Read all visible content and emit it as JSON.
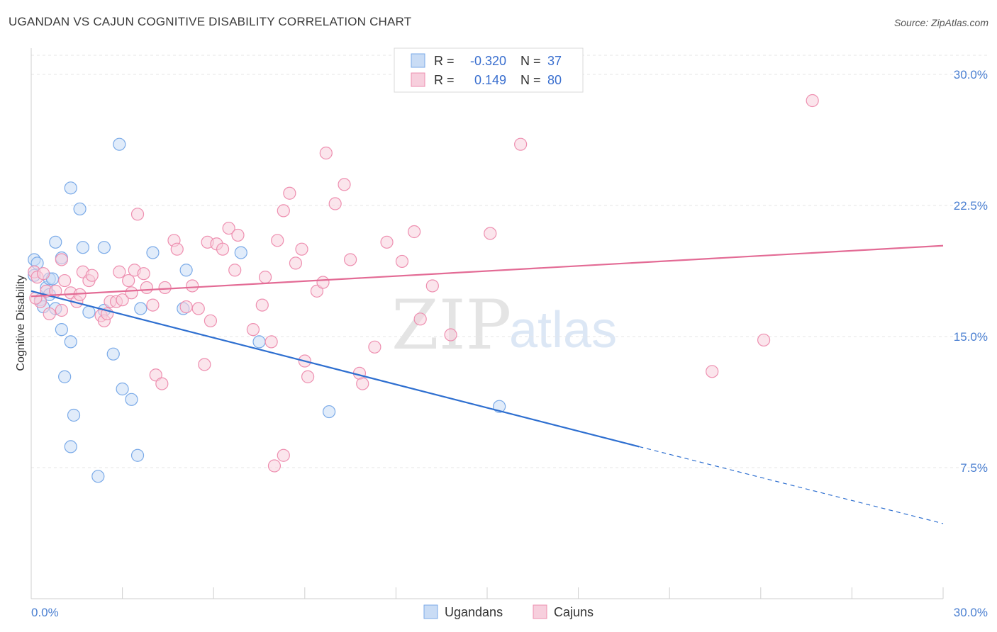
{
  "header": {
    "title": "UGANDAN VS CAJUN COGNITIVE DISABILITY CORRELATION CHART",
    "source": "Source: ZipAtlas.com"
  },
  "watermark": {
    "zip": "ZIP",
    "atlas": "atlas"
  },
  "legend": {
    "rows": [
      {
        "r_label": "R =",
        "r_value": "-0.320",
        "n_label": "N =",
        "n_value": "37"
      },
      {
        "r_label": "R =",
        "r_value": "0.149",
        "n_label": "N =",
        "n_value": "80"
      }
    ]
  },
  "chart_data": {
    "type": "scatter",
    "title": "UGANDAN VS CAJUN COGNITIVE DISABILITY CORRELATION CHART",
    "xlabel": "",
    "ylabel": "Cognitive Disability",
    "xlim": [
      0,
      30
    ],
    "ylim": [
      0,
      31.5
    ],
    "x_tick_labels": [
      "0.0%",
      "30.0%"
    ],
    "y_ticks": [
      7.5,
      15.0,
      22.5,
      30.0
    ],
    "y_tick_labels": [
      "7.5%",
      "15.0%",
      "22.5%",
      "30.0%"
    ],
    "grid": true,
    "legend_position": "top-center",
    "series": [
      {
        "name": "Ugandans",
        "color": "#7aaae8",
        "fill": "#c9dcf5",
        "r": -0.32,
        "n": 37,
        "trend": {
          "x0": 0,
          "y0": 17.6,
          "x1": 20.0,
          "y1": 8.7,
          "dash_to_x": 30,
          "dash_to_y": 4.3
        },
        "points": [
          [
            0.1,
            19.4
          ],
          [
            0.2,
            19.2
          ],
          [
            0.1,
            18.5
          ],
          [
            0.3,
            17.1
          ],
          [
            0.4,
            16.7
          ],
          [
            0.5,
            17.8
          ],
          [
            0.6,
            17.4
          ],
          [
            0.6,
            18.3
          ],
          [
            0.7,
            18.3
          ],
          [
            0.8,
            16.6
          ],
          [
            0.8,
            20.4
          ],
          [
            1.0,
            19.5
          ],
          [
            1.0,
            15.4
          ],
          [
            1.3,
            23.5
          ],
          [
            1.1,
            12.7
          ],
          [
            1.4,
            10.5
          ],
          [
            1.6,
            22.3
          ],
          [
            1.3,
            8.7
          ],
          [
            1.3,
            14.7
          ],
          [
            1.7,
            20.1
          ],
          [
            1.9,
            16.4
          ],
          [
            2.2,
            7.0
          ],
          [
            2.4,
            16.5
          ],
          [
            2.4,
            20.1
          ],
          [
            2.7,
            14.0
          ],
          [
            2.9,
            26.0
          ],
          [
            3.0,
            12.0
          ],
          [
            3.3,
            11.4
          ],
          [
            3.5,
            8.2
          ],
          [
            3.6,
            16.6
          ],
          [
            4.0,
            19.8
          ],
          [
            5.1,
            18.8
          ],
          [
            5.0,
            16.6
          ],
          [
            6.9,
            19.8
          ],
          [
            7.5,
            14.7
          ],
          [
            9.8,
            10.7
          ],
          [
            15.4,
            11.0
          ]
        ]
      },
      {
        "name": "Cajuns",
        "color": "#ee8fb0",
        "fill": "#f7cfdd",
        "r": 0.149,
        "n": 80,
        "trend": {
          "x0": 0,
          "y0": 17.3,
          "x1": 30,
          "y1": 20.2
        },
        "points": [
          [
            0.1,
            18.7
          ],
          [
            0.2,
            18.4
          ],
          [
            0.3,
            17.0
          ],
          [
            0.4,
            18.6
          ],
          [
            0.5,
            17.6
          ],
          [
            0.6,
            16.3
          ],
          [
            0.8,
            17.6
          ],
          [
            1.0,
            16.5
          ],
          [
            1.0,
            19.4
          ],
          [
            1.1,
            18.2
          ],
          [
            1.3,
            17.5
          ],
          [
            1.5,
            17.0
          ],
          [
            1.6,
            17.4
          ],
          [
            1.7,
            18.7
          ],
          [
            1.9,
            18.2
          ],
          [
            2.0,
            18.5
          ],
          [
            2.3,
            16.2
          ],
          [
            2.4,
            15.9
          ],
          [
            2.5,
            16.3
          ],
          [
            2.6,
            17.0
          ],
          [
            2.8,
            17.0
          ],
          [
            2.9,
            18.7
          ],
          [
            3.0,
            17.1
          ],
          [
            3.2,
            18.2
          ],
          [
            3.3,
            17.5
          ],
          [
            3.4,
            18.8
          ],
          [
            3.5,
            22.0
          ],
          [
            3.7,
            18.6
          ],
          [
            3.8,
            17.8
          ],
          [
            4.0,
            16.8
          ],
          [
            4.1,
            12.8
          ],
          [
            4.3,
            12.3
          ],
          [
            4.4,
            17.8
          ],
          [
            4.7,
            20.5
          ],
          [
            4.8,
            20.0
          ],
          [
            5.1,
            16.7
          ],
          [
            5.3,
            17.9
          ],
          [
            5.5,
            16.6
          ],
          [
            5.7,
            13.4
          ],
          [
            5.8,
            20.4
          ],
          [
            5.9,
            15.9
          ],
          [
            6.1,
            20.3
          ],
          [
            6.3,
            20.0
          ],
          [
            6.5,
            21.2
          ],
          [
            6.7,
            18.8
          ],
          [
            6.8,
            20.8
          ],
          [
            7.3,
            15.4
          ],
          [
            7.6,
            16.8
          ],
          [
            7.7,
            18.4
          ],
          [
            7.9,
            14.7
          ],
          [
            8.1,
            20.5
          ],
          [
            8.3,
            22.2
          ],
          [
            8.5,
            23.2
          ],
          [
            8.7,
            19.2
          ],
          [
            8.9,
            20.0
          ],
          [
            9.0,
            13.6
          ],
          [
            9.1,
            12.7
          ],
          [
            9.4,
            17.6
          ],
          [
            9.6,
            18.1
          ],
          [
            9.7,
            25.5
          ],
          [
            10.0,
            22.6
          ],
          [
            10.3,
            23.7
          ],
          [
            10.5,
            19.4
          ],
          [
            10.8,
            12.9
          ],
          [
            10.9,
            12.3
          ],
          [
            11.3,
            14.4
          ],
          [
            11.7,
            20.4
          ],
          [
            12.2,
            19.3
          ],
          [
            12.6,
            21.0
          ],
          [
            12.8,
            16.0
          ],
          [
            13.2,
            17.9
          ],
          [
            13.8,
            15.1
          ],
          [
            15.1,
            20.9
          ],
          [
            16.1,
            26.0
          ],
          [
            8.0,
            7.6
          ],
          [
            8.3,
            8.2
          ],
          [
            22.4,
            13.0
          ],
          [
            24.1,
            14.8
          ],
          [
            25.7,
            28.5
          ],
          [
            0.15,
            17.2
          ]
        ]
      }
    ]
  }
}
